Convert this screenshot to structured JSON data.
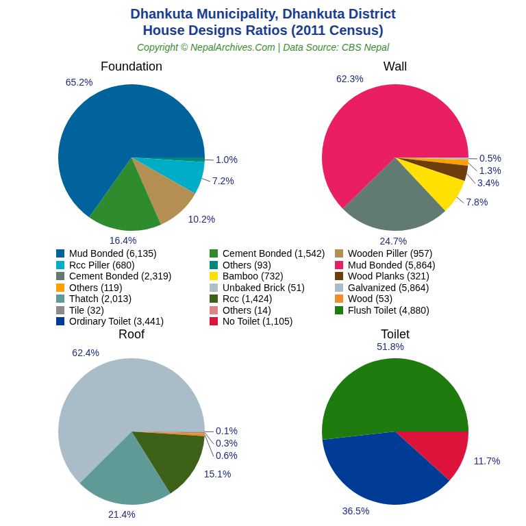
{
  "title": [
    "Dhankuta Municipality, Dhankuta District",
    "House Designs Ratios (2011 Census)"
  ],
  "subtitle": "Copyright © NepalArchives.Com | Data Source: CBS Nepal",
  "chart_data": [
    {
      "type": "pie",
      "title": "Foundation",
      "categories": [
        "Mud Bonded (6,135)",
        "Cement Bonded (1,542)",
        "Wooden Piller (957)",
        "Rcc Piller (680)",
        "Others (93)"
      ],
      "values": [
        65.2,
        16.4,
        10.2,
        7.2,
        1.0
      ],
      "value_labels": [
        "65.2%",
        "16.4%",
        "10.2%",
        "7.2%",
        "1.0%"
      ],
      "colors": [
        "#00639c",
        "#2e8b2e",
        "#b38f53",
        "#00adc6",
        "#00897b"
      ],
      "data_labels": true
    },
    {
      "type": "pie",
      "title": "Wall",
      "categories": [
        "Mud Bonded (5,864)",
        "Cement Bonded (2,319)",
        "Bamboo (732)",
        "Wood Planks (321)",
        "Others (119)",
        "Unbaked Brick (51)"
      ],
      "values": [
        62.3,
        24.7,
        7.8,
        3.4,
        1.3,
        0.5
      ],
      "value_labels": [
        "62.3%",
        "24.7%",
        "7.8%",
        "3.4%",
        "1.3%",
        "0.5%"
      ],
      "colors": [
        "#e91e63",
        "#627b72",
        "#ffe000",
        "#6b3e0b",
        "#ffa000",
        "#b0bec5"
      ],
      "data_labels": true
    },
    {
      "type": "pie",
      "title": "Roof",
      "categories": [
        "Galvanized (5,864)",
        "Thatch (2,013)",
        "Rcc (1,424)",
        "Wood (53)",
        "Tile (32)",
        "Others (14)"
      ],
      "values": [
        62.4,
        21.4,
        15.1,
        0.6,
        0.3,
        0.1
      ],
      "value_labels": [
        "62.4%",
        "21.4%",
        "15.1%",
        "0.6%",
        "0.3%",
        "0.1%"
      ],
      "colors": [
        "#a9bcc7",
        "#5f9a97",
        "#3d6118",
        "#f28c28",
        "#8c8c8c",
        "#d98585"
      ],
      "data_labels": true
    },
    {
      "type": "pie",
      "title": "Toilet",
      "categories": [
        "Flush Toilet (4,880)",
        "Ordinary Toilet (3,441)",
        "No Toilet (1,105)"
      ],
      "values": [
        51.8,
        36.5,
        11.7
      ],
      "value_labels": [
        "51.8%",
        "36.5%",
        "11.7%"
      ],
      "colors": [
        "#1e7b0e",
        "#003c96",
        "#dc143c"
      ],
      "data_labels": true
    }
  ]
}
